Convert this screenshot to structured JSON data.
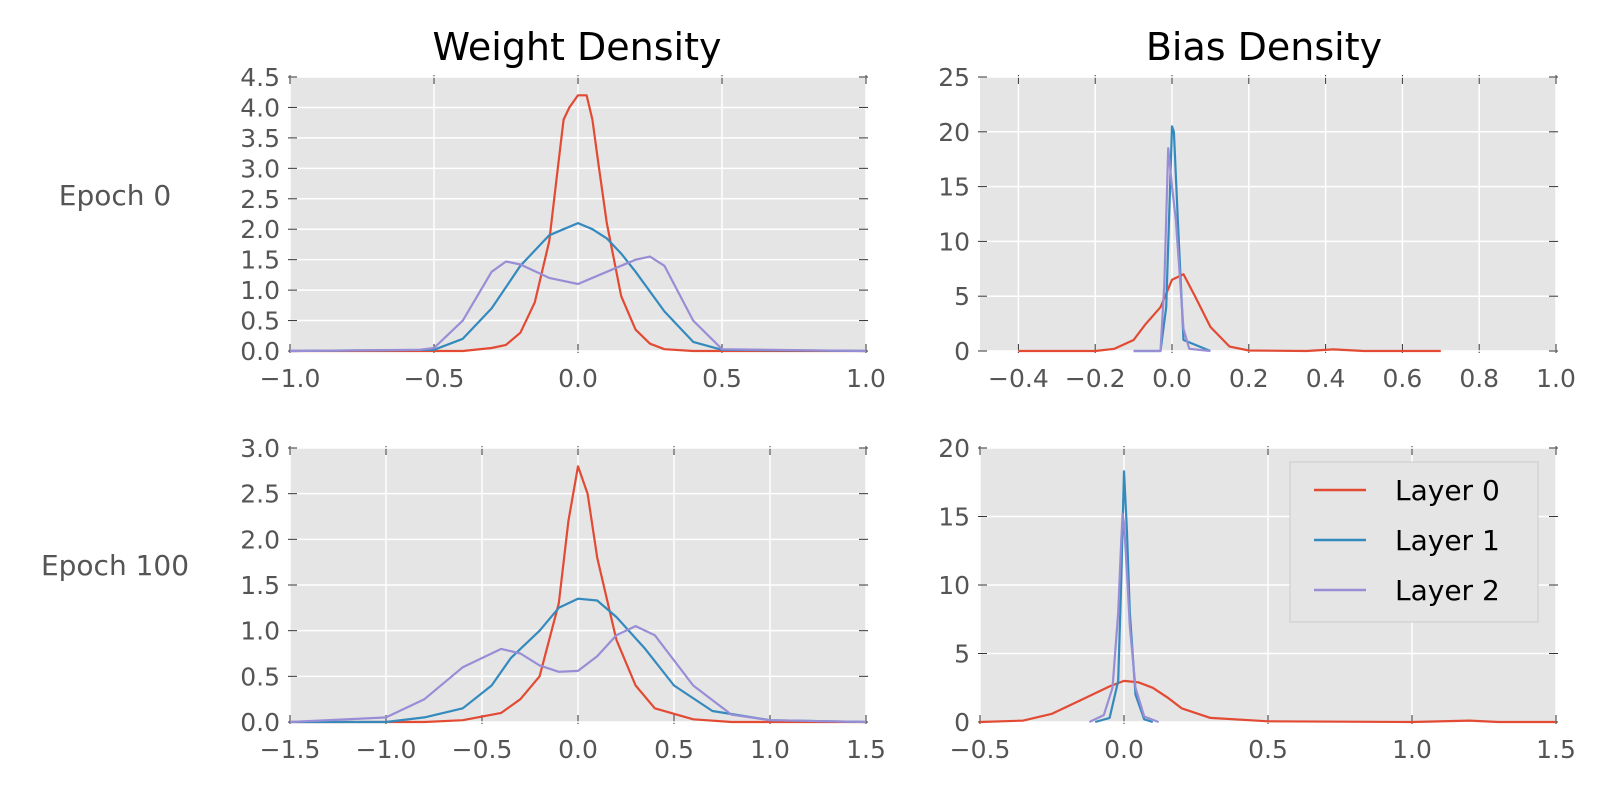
{
  "figure": {
    "col_titles": [
      "Weight Density",
      "Bias Density"
    ],
    "row_labels": [
      "Epoch 0",
      "Epoch 100"
    ]
  },
  "colors": {
    "Layer 0": "#e24a33",
    "Layer 1": "#348abd",
    "Layer 2": "#988ed5",
    "panel_bg": "#e5e5e5",
    "grid": "#ffffff",
    "tick_text": "#555555"
  },
  "legend": {
    "placement": "upper-right of bottom-right panel",
    "entries": [
      "Layer 0",
      "Layer 1",
      "Layer 2"
    ]
  },
  "chart_data": [
    {
      "type": "line",
      "title": "Weight Density",
      "row_label": "Epoch 0",
      "xlim": [
        -1.0,
        1.0
      ],
      "ylim": [
        0.0,
        4.5
      ],
      "xticks": [
        "−1.0",
        "−0.5",
        "0.0",
        "0.5",
        "1.0"
      ],
      "xtick_values": [
        -1.0,
        -0.5,
        0.0,
        0.5,
        1.0
      ],
      "yticks": [
        "0.0",
        "0.5",
        "1.0",
        "1.5",
        "2.0",
        "2.5",
        "3.0",
        "3.5",
        "4.0",
        "4.5"
      ],
      "ytick_values": [
        0.0,
        0.5,
        1.0,
        1.5,
        2.0,
        2.5,
        3.0,
        3.5,
        4.0,
        4.5
      ],
      "grid": true,
      "series": [
        {
          "name": "Layer 0",
          "x": [
            -1.0,
            -0.4,
            -0.3,
            -0.25,
            -0.2,
            -0.15,
            -0.1,
            -0.07,
            -0.05,
            -0.03,
            0.0,
            0.03,
            0.05,
            0.07,
            0.1,
            0.15,
            0.2,
            0.25,
            0.3,
            0.4,
            1.0
          ],
          "y": [
            0,
            0,
            0.05,
            0.1,
            0.3,
            0.8,
            1.8,
            3.0,
            3.8,
            4.0,
            4.2,
            4.2,
            3.8,
            3.1,
            2.1,
            0.9,
            0.35,
            0.12,
            0.03,
            0,
            0
          ]
        },
        {
          "name": "Layer 1",
          "x": [
            -1.0,
            -0.5,
            -0.4,
            -0.3,
            -0.2,
            -0.15,
            -0.1,
            -0.05,
            0.0,
            0.05,
            0.1,
            0.15,
            0.2,
            0.3,
            0.4,
            0.5,
            1.0
          ],
          "y": [
            0,
            0.02,
            0.2,
            0.7,
            1.4,
            1.65,
            1.9,
            2.0,
            2.1,
            2.0,
            1.85,
            1.6,
            1.3,
            0.65,
            0.15,
            0.02,
            0
          ]
        },
        {
          "name": "Layer 2",
          "x": [
            -1.0,
            -0.55,
            -0.5,
            -0.4,
            -0.3,
            -0.25,
            -0.2,
            -0.1,
            0.0,
            0.1,
            0.2,
            0.25,
            0.3,
            0.4,
            0.5,
            1.0
          ],
          "y": [
            0,
            0.02,
            0.05,
            0.5,
            1.3,
            1.47,
            1.42,
            1.2,
            1.1,
            1.3,
            1.5,
            1.55,
            1.4,
            0.5,
            0.03,
            0
          ]
        }
      ]
    },
    {
      "type": "line",
      "title": "Bias Density",
      "row_label": "Epoch 0",
      "xlim": [
        -0.5,
        1.0
      ],
      "ylim": [
        0,
        25
      ],
      "xticks": [
        "−0.4",
        "−0.2",
        "0.0",
        "0.2",
        "0.4",
        "0.6",
        "0.8",
        "1.0"
      ],
      "xtick_values": [
        -0.4,
        -0.2,
        0.0,
        0.2,
        0.4,
        0.6,
        0.8,
        1.0
      ],
      "yticks": [
        "0",
        "5",
        "10",
        "15",
        "20",
        "25"
      ],
      "ytick_values": [
        0,
        5,
        10,
        15,
        20,
        25
      ],
      "grid": true,
      "series": [
        {
          "name": "Layer 0",
          "x": [
            -0.4,
            -0.2,
            -0.15,
            -0.1,
            -0.07,
            -0.03,
            0.0,
            0.03,
            0.06,
            0.1,
            0.15,
            0.2,
            0.35,
            0.42,
            0.5,
            0.7
          ],
          "y": [
            0,
            0,
            0.2,
            1.0,
            2.4,
            4.0,
            6.5,
            7.0,
            5.0,
            2.2,
            0.4,
            0.05,
            0,
            0.15,
            0,
            0
          ]
        },
        {
          "name": "Layer 1",
          "x": [
            -0.1,
            -0.03,
            -0.015,
            -0.005,
            0.0,
            0.005,
            0.015,
            0.03,
            0.1
          ],
          "y": [
            0,
            0,
            4,
            15,
            20.5,
            20,
            12,
            1,
            0
          ]
        },
        {
          "name": "Layer 2",
          "x": [
            -0.1,
            -0.03,
            -0.02,
            -0.01,
            0.0,
            0.01,
            0.02,
            0.03,
            0.045,
            0.1
          ],
          "y": [
            0,
            0,
            6,
            18.5,
            15,
            12,
            7,
            2,
            0.2,
            0
          ]
        }
      ]
    },
    {
      "type": "line",
      "title": "",
      "row_label": "Epoch 100",
      "xlim": [
        -1.5,
        1.5
      ],
      "ylim": [
        0.0,
        3.0
      ],
      "xticks": [
        "−1.5",
        "−1.0",
        "−0.5",
        "0.0",
        "0.5",
        "1.0",
        "1.5"
      ],
      "xtick_values": [
        -1.5,
        -1.0,
        -0.5,
        0.0,
        0.5,
        1.0,
        1.5
      ],
      "yticks": [
        "0.0",
        "0.5",
        "1.0",
        "1.5",
        "2.0",
        "2.5",
        "3.0"
      ],
      "ytick_values": [
        0.0,
        0.5,
        1.0,
        1.5,
        2.0,
        2.5,
        3.0
      ],
      "grid": true,
      "series": [
        {
          "name": "Layer 0",
          "x": [
            -1.5,
            -0.8,
            -0.6,
            -0.4,
            -0.3,
            -0.2,
            -0.1,
            -0.05,
            0.0,
            0.05,
            0.1,
            0.2,
            0.3,
            0.4,
            0.6,
            0.8,
            1.5
          ],
          "y": [
            0,
            0,
            0.02,
            0.1,
            0.25,
            0.5,
            1.3,
            2.2,
            2.8,
            2.5,
            1.8,
            0.9,
            0.4,
            0.15,
            0.03,
            0,
            0
          ]
        },
        {
          "name": "Layer 1",
          "x": [
            -1.5,
            -1.0,
            -0.8,
            -0.6,
            -0.45,
            -0.35,
            -0.2,
            -0.1,
            0.0,
            0.1,
            0.2,
            0.35,
            0.5,
            0.7,
            1.0,
            1.5
          ],
          "y": [
            0,
            0,
            0.05,
            0.15,
            0.4,
            0.7,
            1.0,
            1.25,
            1.35,
            1.33,
            1.15,
            0.8,
            0.4,
            0.12,
            0.02,
            0
          ]
        },
        {
          "name": "Layer 2",
          "x": [
            -1.5,
            -1.0,
            -0.8,
            -0.6,
            -0.4,
            -0.3,
            -0.2,
            -0.1,
            0.0,
            0.1,
            0.2,
            0.3,
            0.4,
            0.6,
            0.8,
            1.0,
            1.5
          ],
          "y": [
            0,
            0.05,
            0.25,
            0.6,
            0.8,
            0.75,
            0.62,
            0.55,
            0.56,
            0.72,
            0.95,
            1.05,
            0.95,
            0.4,
            0.08,
            0.02,
            0
          ]
        }
      ]
    },
    {
      "type": "line",
      "title": "",
      "row_label": "Epoch 100",
      "xlim": [
        -0.5,
        1.5
      ],
      "ylim": [
        0,
        20
      ],
      "xticks": [
        "−0.5",
        "0.0",
        "0.5",
        "1.0",
        "1.5"
      ],
      "xtick_values": [
        -0.5,
        0.0,
        0.5,
        1.0,
        1.5
      ],
      "yticks": [
        "0",
        "5",
        "10",
        "15",
        "20"
      ],
      "ytick_values": [
        0,
        5,
        10,
        15,
        20
      ],
      "grid": true,
      "series": [
        {
          "name": "Layer 0",
          "x": [
            -0.5,
            -0.35,
            -0.25,
            -0.15,
            -0.05,
            0.0,
            0.05,
            0.1,
            0.15,
            0.2,
            0.3,
            0.5,
            1.0,
            1.2,
            1.3,
            1.5
          ],
          "y": [
            0,
            0.1,
            0.6,
            1.6,
            2.6,
            3.0,
            2.9,
            2.5,
            1.8,
            1.0,
            0.3,
            0.05,
            0,
            0.1,
            0,
            0
          ]
        },
        {
          "name": "Layer 1",
          "x": [
            -0.1,
            -0.05,
            -0.02,
            -0.01,
            0.0,
            0.01,
            0.02,
            0.04,
            0.07,
            0.1
          ],
          "y": [
            0,
            0.3,
            3,
            10,
            18.3,
            14,
            8,
            2,
            0.2,
            0
          ]
        },
        {
          "name": "Layer 2",
          "x": [
            -0.12,
            -0.07,
            -0.04,
            -0.02,
            -0.01,
            -0.005,
            0.0,
            0.01,
            0.02,
            0.04,
            0.07,
            0.12
          ],
          "y": [
            0,
            0.5,
            2.5,
            8,
            13,
            15.2,
            14.5,
            11,
            7,
            2.5,
            0.4,
            0
          ]
        }
      ]
    }
  ]
}
